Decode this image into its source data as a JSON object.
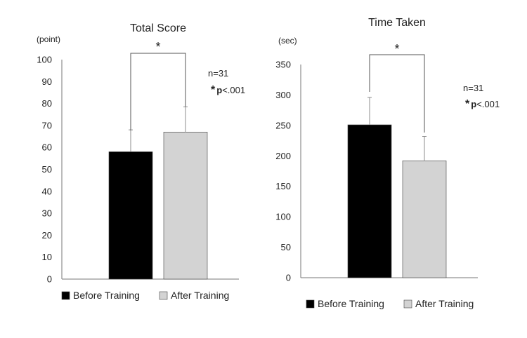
{
  "chart_data": [
    {
      "type": "bar",
      "title": "Total Score",
      "ylabel": "(point)",
      "categories": [
        "Before Training",
        "After Training"
      ],
      "values": [
        58,
        67
      ],
      "errors": [
        10,
        11.5
      ],
      "colors": [
        "#000000",
        "#d3d3d3"
      ],
      "ylim": [
        0,
        100
      ],
      "yticks": [
        0,
        10,
        20,
        30,
        40,
        50,
        60,
        70,
        80,
        90,
        100
      ],
      "grid": false,
      "significance": "*",
      "annotation": {
        "n": "n=31",
        "p_star": "*",
        "p_label": "p",
        "p_value": "<.001"
      },
      "legend": {
        "placement": "bottom",
        "items": [
          "Before Training",
          "After Training"
        ]
      }
    },
    {
      "type": "bar",
      "title": "Time Taken",
      "ylabel": "(sec)",
      "categories": [
        "Before Training",
        "After Training"
      ],
      "values": [
        251,
        192
      ],
      "errors": [
        45,
        40
      ],
      "colors": [
        "#000000",
        "#d3d3d3"
      ],
      "ylim": [
        0,
        350
      ],
      "yticks": [
        0,
        50,
        100,
        150,
        200,
        250,
        300,
        350
      ],
      "grid": false,
      "significance": "*",
      "annotation": {
        "n": "n=31",
        "p_star": "*",
        "p_label": "p",
        "p_value": "<.001"
      },
      "legend": {
        "placement": "bottom",
        "items": [
          "Before Training",
          "After Training"
        ]
      }
    }
  ]
}
